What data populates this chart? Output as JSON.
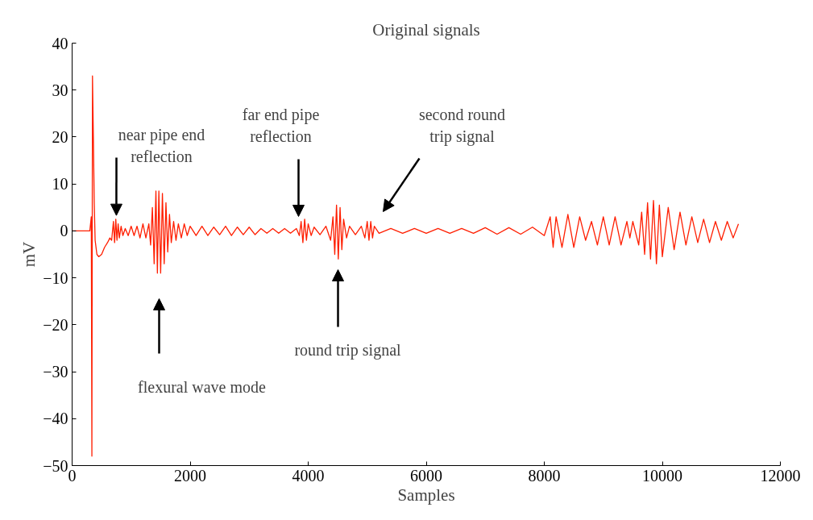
{
  "chart_data": {
    "type": "line",
    "title": "Original signals",
    "xlabel": "Samples",
    "ylabel": "mV",
    "xlim": [
      0,
      12000
    ],
    "ylim": [
      -50,
      40
    ],
    "xticks": [
      0,
      2000,
      4000,
      6000,
      8000,
      10000,
      12000
    ],
    "yticks": [
      -50,
      -40,
      -30,
      -20,
      -10,
      0,
      10,
      20,
      30,
      40
    ],
    "grid": false,
    "marker": "none",
    "line_style": "solid",
    "series": [
      {
        "color": "#ff1e00",
        "x": [
          0,
          300,
          325,
          335,
          345,
          360,
          375,
          390,
          420,
          450,
          500,
          550,
          600,
          640,
          670,
          700,
          720,
          740,
          760,
          780,
          800,
          830,
          860,
          900,
          950,
          1000,
          1050,
          1100,
          1150,
          1200,
          1250,
          1300,
          1330,
          1360,
          1390,
          1420,
          1445,
          1470,
          1500,
          1530,
          1560,
          1590,
          1620,
          1650,
          1680,
          1720,
          1760,
          1800,
          1850,
          1900,
          1950,
          2000,
          2100,
          2200,
          2300,
          2400,
          2500,
          2600,
          2700,
          2800,
          2900,
          3000,
          3100,
          3200,
          3300,
          3400,
          3500,
          3600,
          3700,
          3800,
          3850,
          3880,
          3910,
          3940,
          3970,
          4000,
          4050,
          4100,
          4200,
          4300,
          4380,
          4420,
          4450,
          4480,
          4510,
          4540,
          4570,
          4600,
          4650,
          4700,
          4800,
          4900,
          4960,
          5000,
          5030,
          5060,
          5090,
          5120,
          5200,
          5400,
          5600,
          5800,
          6000,
          6200,
          6400,
          6600,
          6800,
          7000,
          7200,
          7400,
          7600,
          7800,
          8000,
          8100,
          8150,
          8200,
          8300,
          8400,
          8500,
          8600,
          8700,
          8800,
          8900,
          9000,
          9100,
          9200,
          9300,
          9400,
          9450,
          9500,
          9600,
          9650,
          9700,
          9750,
          9800,
          9850,
          9900,
          9950,
          10000,
          10100,
          10200,
          10300,
          10400,
          10500,
          10600,
          10700,
          10800,
          10900,
          11000,
          11100,
          11200,
          11290
        ],
        "values": [
          0,
          0,
          3,
          -48,
          33,
          20,
          6,
          -2,
          -5,
          -5.5,
          -5,
          -3.5,
          -2.5,
          -1.5,
          -2,
          2,
          -2.5,
          2.5,
          -2,
          1.5,
          -1.5,
          1,
          -1,
          0.5,
          -1,
          1,
          -1,
          1,
          -1.5,
          1.5,
          -1.5,
          1.5,
          -3,
          5,
          -7,
          8.5,
          -9,
          8.5,
          -9,
          8,
          -7,
          6,
          -4.5,
          3.5,
          -2.5,
          2,
          -2,
          1.5,
          -1.5,
          1.5,
          -1,
          1,
          -1,
          1,
          -1,
          0.8,
          -0.8,
          1,
          -1,
          0.8,
          -0.8,
          0.8,
          -0.8,
          0.5,
          -0.5,
          0.5,
          -0.5,
          0.5,
          -0.5,
          0.5,
          -1,
          2,
          -2.5,
          2.5,
          -2,
          1.5,
          -1,
          0.8,
          -0.8,
          1,
          -2,
          3,
          -5,
          5.5,
          -6,
          5,
          -4,
          2.5,
          -1.5,
          1,
          -0.8,
          1,
          -1.5,
          2,
          -2,
          2,
          -1.5,
          1,
          -0.5,
          0.5,
          -0.5,
          0.5,
          -0.5,
          0.5,
          -0.5,
          0.5,
          -0.5,
          0.7,
          -0.7,
          0.7,
          -0.7,
          0.8,
          -1,
          3,
          -3.5,
          3,
          -3.5,
          3.5,
          -3.5,
          3,
          -2,
          2,
          -3,
          3,
          -3,
          3,
          -3,
          2,
          -1.5,
          2,
          -3,
          4,
          -5,
          6,
          -6,
          6.5,
          -7,
          5.5,
          -5.5,
          5,
          -4,
          4,
          -3,
          3,
          -2.5,
          2.5,
          -2.5,
          2,
          -2,
          2,
          -1.5,
          1.5
        ]
      }
    ],
    "annotations": [
      {
        "text": "near pipe end\nreflection",
        "x": 750,
        "y": 3.3
      },
      "flexural wave mode",
      "far end pipe\nreflection",
      "round trip signal",
      "second round\ntrip signal"
    ]
  }
}
